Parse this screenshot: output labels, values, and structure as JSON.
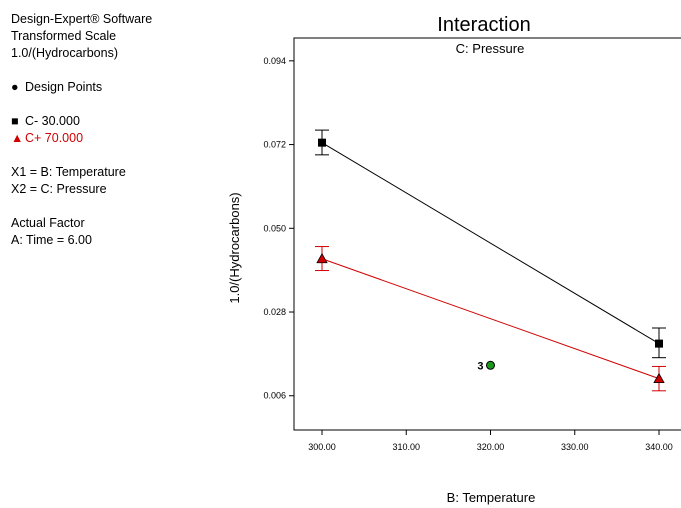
{
  "legend": {
    "software": "Design-Expert® Software",
    "scale": "Transformed Scale",
    "transform": "1.0/(Hydrocarbons)",
    "design_points": "Design Points",
    "factors": [
      "X1 = B: Temperature",
      "X2 = C: Pressure"
    ],
    "actual_factor_heading": "Actual Factor",
    "actual_factor": "A: Time = 6.00"
  },
  "chart_data": {
    "type": "line",
    "title": "Interaction",
    "subtitle": "C: Pressure",
    "xlabel": "B: Temperature",
    "ylabel": "1.0/(Hydrocarbons)",
    "xlim": [
      300,
      340
    ],
    "ylim": [
      -0.003,
      0.1
    ],
    "x_ticks": [
      "300.00",
      "310.00",
      "320.00",
      "330.00",
      "340.00"
    ],
    "y_ticks": [
      "0.006",
      "0.028",
      "0.050",
      "0.072",
      "0.094"
    ],
    "grid": false,
    "series": [
      {
        "name": "C- 30.000",
        "color": "#000000",
        "marker": "square",
        "x": [
          300,
          340
        ],
        "y": [
          0.0725,
          0.0197
        ],
        "err_low": [
          0.0693,
          0.016
        ],
        "err_high": [
          0.0758,
          0.0238
        ]
      },
      {
        "name": "C+ 70.000",
        "color": "#d00000",
        "marker": "triangle",
        "x": [
          300,
          340
        ],
        "y": [
          0.042,
          0.0105
        ],
        "err_low": [
          0.0389,
          0.0073
        ],
        "err_high": [
          0.0452,
          0.0137
        ]
      }
    ],
    "design_points": [
      {
        "x": 320,
        "y": 0.014,
        "label": "3",
        "color": "#1a9a1a"
      }
    ]
  }
}
